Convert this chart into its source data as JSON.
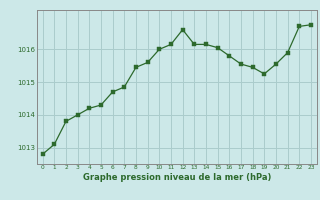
{
  "x": [
    0,
    1,
    2,
    3,
    4,
    5,
    6,
    7,
    8,
    9,
    10,
    11,
    12,
    13,
    14,
    15,
    16,
    17,
    18,
    19,
    20,
    21,
    22,
    23
  ],
  "y": [
    1012.8,
    1013.1,
    1013.8,
    1014.0,
    1014.2,
    1014.3,
    1014.7,
    1014.85,
    1015.45,
    1015.6,
    1016.0,
    1016.15,
    1016.6,
    1016.15,
    1016.15,
    1016.05,
    1015.8,
    1015.55,
    1015.45,
    1015.25,
    1015.55,
    1015.9,
    1016.7,
    1016.75
  ],
  "line_color": "#2d6a2d",
  "marker_color": "#2d6a2d",
  "bg_color": "#cce8e8",
  "grid_color": "#aacccc",
  "xlabel": "Graphe pression niveau de la mer (hPa)",
  "xlabel_color": "#2d6a2d",
  "tick_color": "#2d6a2d",
  "ylim": [
    1012.5,
    1017.2
  ],
  "yticks": [
    1013,
    1014,
    1015,
    1016
  ],
  "xticks": [
    0,
    1,
    2,
    3,
    4,
    5,
    6,
    7,
    8,
    9,
    10,
    11,
    12,
    13,
    14,
    15,
    16,
    17,
    18,
    19,
    20,
    21,
    22,
    23
  ],
  "axis_color": "#888888"
}
